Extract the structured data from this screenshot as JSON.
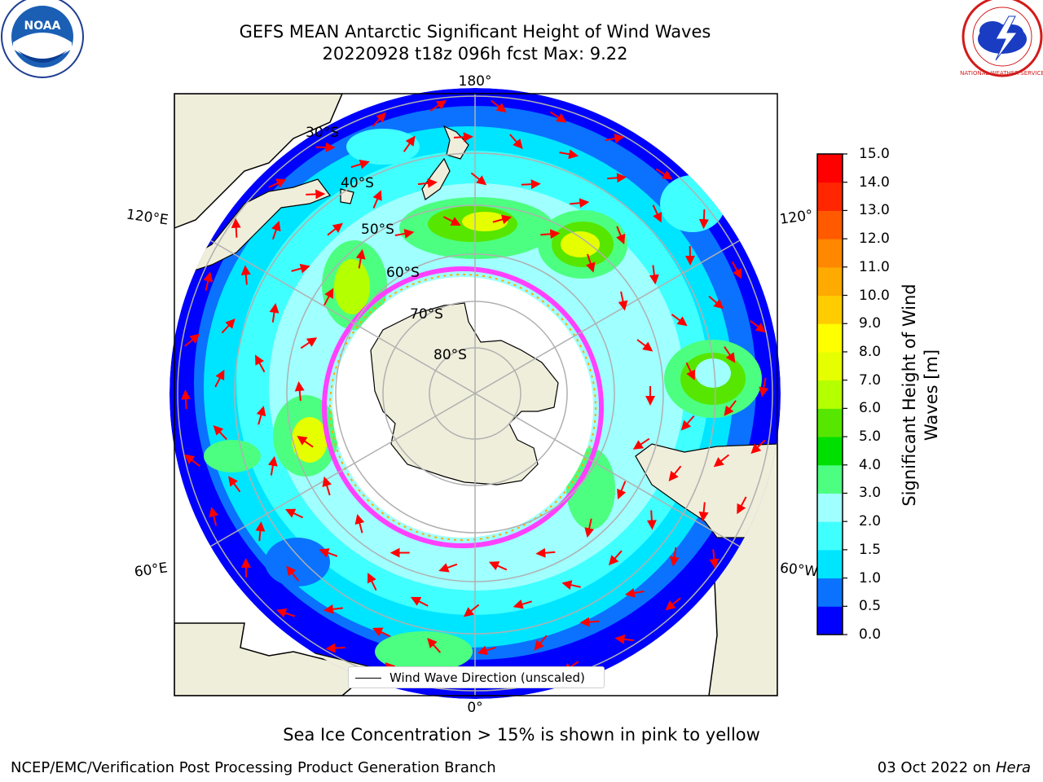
{
  "title": {
    "line1": "GEFS MEAN Antarctic Significant Height of Wind Waves",
    "line2": "20220928 t18z 096h fcst   Max: 9.22"
  },
  "logos": {
    "left": "noaa-logo",
    "right": "national-weather-service-logo",
    "left_text": "NOAA",
    "right_text": "NATIONAL WEATHER SERVICE"
  },
  "map": {
    "projection": "south-polar-stereographic",
    "lon_labels": [
      "180°",
      "120°E",
      "120°",
      "60°E",
      "60°W",
      "0°"
    ],
    "lat_labels": [
      "30°S",
      "40°S",
      "50°S",
      "60°S",
      "70°S",
      "80°S"
    ],
    "legend_entry": "Wind Wave Direction (unscaled)",
    "colors": {
      "land": "#efeedb",
      "arrow": "#ff0000",
      "ice": "#ff40ff",
      "grid": "#b0b0b0"
    }
  },
  "colorbar": {
    "label": "Significant Height of Wind Waves [m]",
    "ticks": [
      "0.0",
      "0.5",
      "1.0",
      "1.5",
      "2.0",
      "3.0",
      "4.0",
      "5.0",
      "6.0",
      "7.0",
      "8.0",
      "9.0",
      "10.0",
      "11.0",
      "12.0",
      "13.0",
      "14.0",
      "15.0"
    ],
    "colors": [
      "#0000ff",
      "#0a72ff",
      "#00e5ff",
      "#40ffff",
      "#a0ffff",
      "#4cff80",
      "#00e000",
      "#57e600",
      "#b4ff00",
      "#e5ff00",
      "#ffff00",
      "#ffcc00",
      "#ffaa00",
      "#ff8800",
      "#ff5a00",
      "#ff2600",
      "#ff0000"
    ]
  },
  "note": "Sea Ice Concentration > 15% is shown in pink to yellow",
  "footer": {
    "left": "NCEP/EMC/Verification Post Processing Product Generation Branch",
    "right_prefix": "03 Oct 2022 on ",
    "right_host": "Hera"
  }
}
